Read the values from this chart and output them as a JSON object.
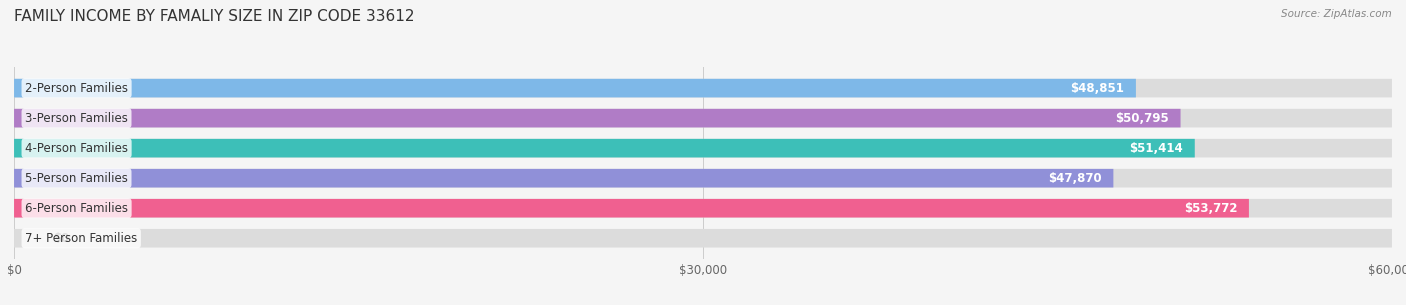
{
  "title": "FAMILY INCOME BY FAMALIY SIZE IN ZIP CODE 33612",
  "source": "Source: ZipAtlas.com",
  "categories": [
    "2-Person Families",
    "3-Person Families",
    "4-Person Families",
    "5-Person Families",
    "6-Person Families",
    "7+ Person Families"
  ],
  "values": [
    48851,
    50795,
    51414,
    47870,
    53772,
    0
  ],
  "labels": [
    "$48,851",
    "$50,795",
    "$51,414",
    "$47,870",
    "$53,772",
    "$0"
  ],
  "bar_colors": [
    "#7EB8E8",
    "#B07CC6",
    "#3DBFB8",
    "#9090D8",
    "#F06090",
    "#F5C8A0"
  ],
  "bar_bg_color": "#DCDCDC",
  "xlim": [
    0,
    60000
  ],
  "xticks": [
    0,
    30000,
    60000
  ],
  "xticklabels": [
    "$0",
    "$30,000",
    "$60,000"
  ],
  "figsize": [
    14.06,
    3.05
  ],
  "dpi": 100,
  "title_fontsize": 11,
  "label_fontsize": 8.5,
  "bar_label_fontsize": 8.5,
  "bar_height": 0.62,
  "background_color": "#F5F5F5"
}
